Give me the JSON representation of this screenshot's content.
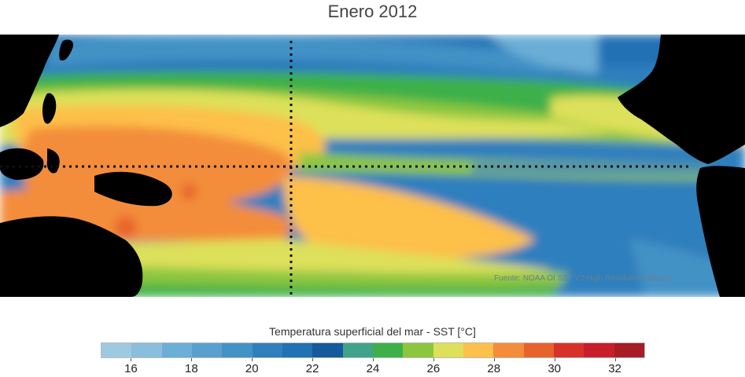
{
  "title": "Enero 2012",
  "source_note": "Fuente: NOAA OI SST V2 High Resolution Dataset",
  "colorbar": {
    "title": "Temperatura superficial del mar - SST  [°C]",
    "colors": [
      "#9ecae1",
      "#8abedd",
      "#6baed6",
      "#5aa0cf",
      "#4292c6",
      "#2f7fbd",
      "#2171b5",
      "#155a9c",
      "#41a38a",
      "#3db04a",
      "#8cc63f",
      "#dde05a",
      "#fdc04a",
      "#f38d3a",
      "#e8632b",
      "#d6322a",
      "#c81e2c",
      "#a81c26"
    ],
    "ticks": [
      "16",
      "18",
      "20",
      "22",
      "24",
      "26",
      "28",
      "30",
      "32"
    ],
    "min": 15,
    "max": 33
  },
  "palette": {
    "land": "#000000",
    "grid_line": "#111111"
  }
}
